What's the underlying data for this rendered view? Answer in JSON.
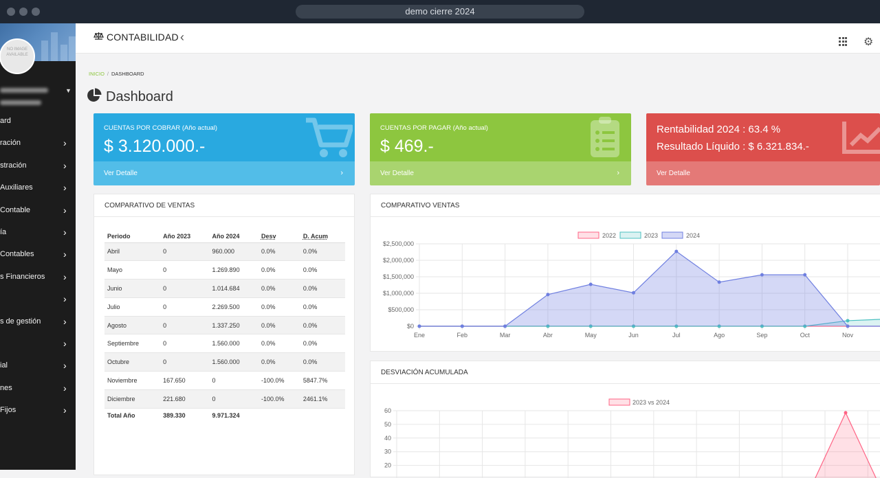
{
  "window": {
    "title": "demo cierre 2024"
  },
  "sidebar": {
    "avatar_text": "NO IMAGE AVAILABLE",
    "items": [
      {
        "label": "ard",
        "has_arrow": false
      },
      {
        "label": "ración",
        "has_arrow": true
      },
      {
        "label": "stración",
        "has_arrow": true
      },
      {
        "label": "Auxiliares",
        "has_arrow": true
      },
      {
        "label": "Contable",
        "has_arrow": true
      },
      {
        "label": "ía",
        "has_arrow": true
      },
      {
        "label": "Contables",
        "has_arrow": true
      },
      {
        "label": "s Financieros",
        "has_arrow": true
      },
      {
        "label": "",
        "has_arrow": true
      },
      {
        "label": "s de gestión",
        "has_arrow": true
      },
      {
        "label": "",
        "has_arrow": true
      },
      {
        "label": "ial",
        "has_arrow": true
      },
      {
        "label": "nes",
        "has_arrow": true
      },
      {
        "label": "Fijos",
        "has_arrow": true
      }
    ]
  },
  "header": {
    "title": "CONTABILIDAD"
  },
  "breadcrumb": {
    "home": "INICIO",
    "separator": "/",
    "current": "DASHBOARD"
  },
  "page": {
    "title": "Dashboard"
  },
  "cards": {
    "cobrar": {
      "label": "CUENTAS POR COBRAR (Año actual)",
      "amount": "$ 3.120.000.-",
      "link": "Ver Detalle",
      "color": "#29a9e0",
      "footer_color": "#52bde8"
    },
    "pagar": {
      "label": "CUENTAS POR PAGAR (Año actual)",
      "amount": "$ 469.-",
      "link": "Ver Detalle",
      "color": "#8dc63f",
      "footer_color": "#a9d46f"
    },
    "rentabilidad": {
      "line1": "Rentabilidad 2024 : 63.4 %",
      "line2": "Resultado Líquido : $ 6.321.834.-",
      "link": "Ver Detalle",
      "color": "#dc4f4c",
      "footer_color": "#e47977"
    }
  },
  "sales_table": {
    "title": "COMPARATIVO DE VENTAS",
    "headers": [
      "Periodo",
      "Año 2023",
      "Año 2024",
      "Desv",
      "D. Acum"
    ],
    "rows": [
      [
        "Abril",
        "0",
        "960.000",
        "0.0%",
        "0.0%"
      ],
      [
        "Mayo",
        "0",
        "1.269.890",
        "0.0%",
        "0.0%"
      ],
      [
        "Junio",
        "0",
        "1.014.684",
        "0.0%",
        "0.0%"
      ],
      [
        "Julio",
        "0",
        "2.269.500",
        "0.0%",
        "0.0%"
      ],
      [
        "Agosto",
        "0",
        "1.337.250",
        "0.0%",
        "0.0%"
      ],
      [
        "Septiembre",
        "0",
        "1.560.000",
        "0.0%",
        "0.0%"
      ],
      [
        "Octubre",
        "0",
        "1.560.000",
        "0.0%",
        "0.0%"
      ],
      [
        "Noviembre",
        "167.650",
        "0",
        "-100.0%",
        "5847.7%"
      ],
      [
        "Diciembre",
        "221.680",
        "0",
        "-100.0%",
        "2461.1%"
      ]
    ],
    "total": [
      "Total Año",
      "389.330",
      "9.971.324",
      "",
      ""
    ]
  },
  "chart_data": [
    {
      "type": "area",
      "title": "COMPARATIVO VENTAS",
      "categories": [
        "Ene",
        "Feb",
        "Mar",
        "Abr",
        "May",
        "Jun",
        "Jul",
        "Ago",
        "Sep",
        "Oct",
        "Nov"
      ],
      "y_ticks": [
        "$0",
        "$500,000",
        "$1,000,000",
        "$1,500,000",
        "$2,000,000",
        "$2,500,000"
      ],
      "ylim": [
        0,
        2500000
      ],
      "legend_position": "top",
      "series": [
        {
          "name": "2022",
          "values": [
            0,
            0,
            0,
            0,
            0,
            0,
            0,
            0,
            0,
            0,
            0
          ],
          "color": "#ff6384",
          "fill": "rgba(255,99,132,0.2)"
        },
        {
          "name": "2023",
          "values": [
            0,
            0,
            0,
            0,
            0,
            0,
            0,
            0,
            0,
            0,
            167650
          ],
          "color": "#4bc0c0",
          "fill": "rgba(75,192,192,0.2)"
        },
        {
          "name": "2024",
          "values": [
            0,
            0,
            0,
            960000,
            1269890,
            1014684,
            2269500,
            1337250,
            1560000,
            1560000,
            0
          ],
          "color": "#6f7fe0",
          "fill": "rgba(111,127,224,0.3)"
        }
      ]
    },
    {
      "type": "area",
      "title": "DESVIACIÓN ACUMULADA",
      "y_ticks": [
        "20",
        "30",
        "40",
        "50",
        "60"
      ],
      "ylim": [
        0,
        60
      ],
      "legend_position": "top",
      "series": [
        {
          "name": "2023 vs 2024",
          "color": "#ff6384",
          "fill": "rgba(255,99,132,0.2)",
          "peak": 58.5
        }
      ]
    }
  ]
}
